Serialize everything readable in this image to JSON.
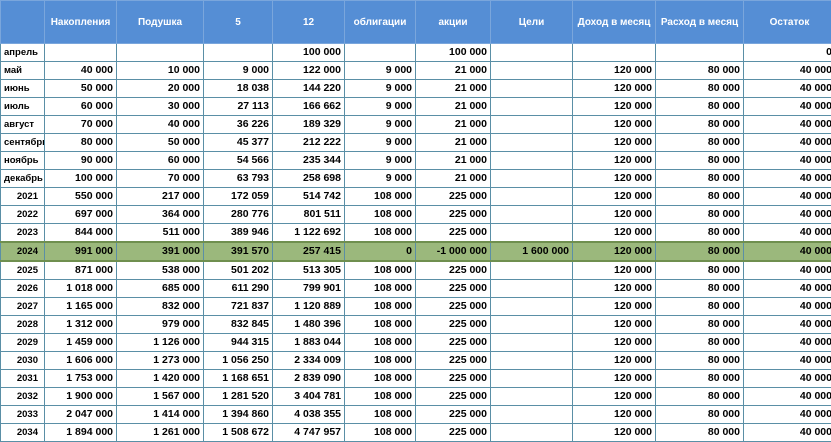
{
  "table": {
    "columns": [
      "",
      "Накопления",
      "Подушка",
      "5",
      "12",
      "облигации",
      "акции",
      "Цели",
      "Доход в месяц",
      "Расход в месяц",
      "Остаток"
    ],
    "rows": [
      [
        "апрель",
        "",
        "",
        "",
        "100 000",
        "",
        "100 000",
        "",
        "",
        "",
        "0"
      ],
      [
        "май",
        "40 000",
        "10 000",
        "9 000",
        "122 000",
        "9 000",
        "21 000",
        "",
        "120 000",
        "80 000",
        "40 000"
      ],
      [
        "июнь",
        "50 000",
        "20 000",
        "18 038",
        "144 220",
        "9 000",
        "21 000",
        "",
        "120 000",
        "80 000",
        "40 000"
      ],
      [
        "июль",
        "60 000",
        "30 000",
        "27 113",
        "166 662",
        "9 000",
        "21 000",
        "",
        "120 000",
        "80 000",
        "40 000"
      ],
      [
        "август",
        "70 000",
        "40 000",
        "36 226",
        "189 329",
        "9 000",
        "21 000",
        "",
        "120 000",
        "80 000",
        "40 000"
      ],
      [
        "сентябрь",
        "80 000",
        "50 000",
        "45 377",
        "212 222",
        "9 000",
        "21 000",
        "",
        "120 000",
        "80 000",
        "40 000"
      ],
      [
        "ноябрь",
        "90 000",
        "60 000",
        "54 566",
        "235 344",
        "9 000",
        "21 000",
        "",
        "120 000",
        "80 000",
        "40 000"
      ],
      [
        "декабрь",
        "100 000",
        "70 000",
        "63 793",
        "258 698",
        "9 000",
        "21 000",
        "",
        "120 000",
        "80 000",
        "40 000"
      ],
      [
        "2021",
        "550 000",
        "217 000",
        "172 059",
        "514 742",
        "108 000",
        "225 000",
        "",
        "120 000",
        "80 000",
        "40 000"
      ],
      [
        "2022",
        "697 000",
        "364 000",
        "280 776",
        "801 511",
        "108 000",
        "225 000",
        "",
        "120 000",
        "80 000",
        "40 000"
      ],
      [
        "2023",
        "844 000",
        "511 000",
        "389 946",
        "1 122 692",
        "108 000",
        "225 000",
        "",
        "120 000",
        "80 000",
        "40 000"
      ],
      [
        "2024",
        "991 000",
        "391 000",
        "391 570",
        "257 415",
        "0",
        "-1 000 000",
        "1 600 000",
        "120 000",
        "80 000",
        "40 000"
      ],
      [
        "2025",
        "871 000",
        "538 000",
        "501 202",
        "513 305",
        "108 000",
        "225 000",
        "",
        "120 000",
        "80 000",
        "40 000"
      ],
      [
        "2026",
        "1 018 000",
        "685 000",
        "611 290",
        "799 901",
        "108 000",
        "225 000",
        "",
        "120 000",
        "80 000",
        "40 000"
      ],
      [
        "2027",
        "1 165 000",
        "832 000",
        "721 837",
        "1 120 889",
        "108 000",
        "225 000",
        "",
        "120 000",
        "80 000",
        "40 000"
      ],
      [
        "2028",
        "1 312 000",
        "979 000",
        "832 845",
        "1 480 396",
        "108 000",
        "225 000",
        "",
        "120 000",
        "80 000",
        "40 000"
      ],
      [
        "2029",
        "1 459 000",
        "1 126 000",
        "944 315",
        "1 883 044",
        "108 000",
        "225 000",
        "",
        "120 000",
        "80 000",
        "40 000"
      ],
      [
        "2030",
        "1 606 000",
        "1 273 000",
        "1 056 250",
        "2 334 009",
        "108 000",
        "225 000",
        "",
        "120 000",
        "80 000",
        "40 000"
      ],
      [
        "2031",
        "1 753 000",
        "1 420 000",
        "1 168 651",
        "2 839 090",
        "108 000",
        "225 000",
        "",
        "120 000",
        "80 000",
        "40 000"
      ],
      [
        "2032",
        "1 900 000",
        "1 567 000",
        "1 281 520",
        "3 404 781",
        "108 000",
        "225 000",
        "",
        "120 000",
        "80 000",
        "40 000"
      ],
      [
        "2033",
        "2 047 000",
        "1 414 000",
        "1 394 860",
        "4 038 355",
        "108 000",
        "225 000",
        "",
        "120 000",
        "80 000",
        "40 000"
      ],
      [
        "2034",
        "1 894 000",
        "1 261 000",
        "1 508 672",
        "4 747 957",
        "108 000",
        "225 000",
        "",
        "120 000",
        "80 000",
        "40 000"
      ]
    ]
  }
}
